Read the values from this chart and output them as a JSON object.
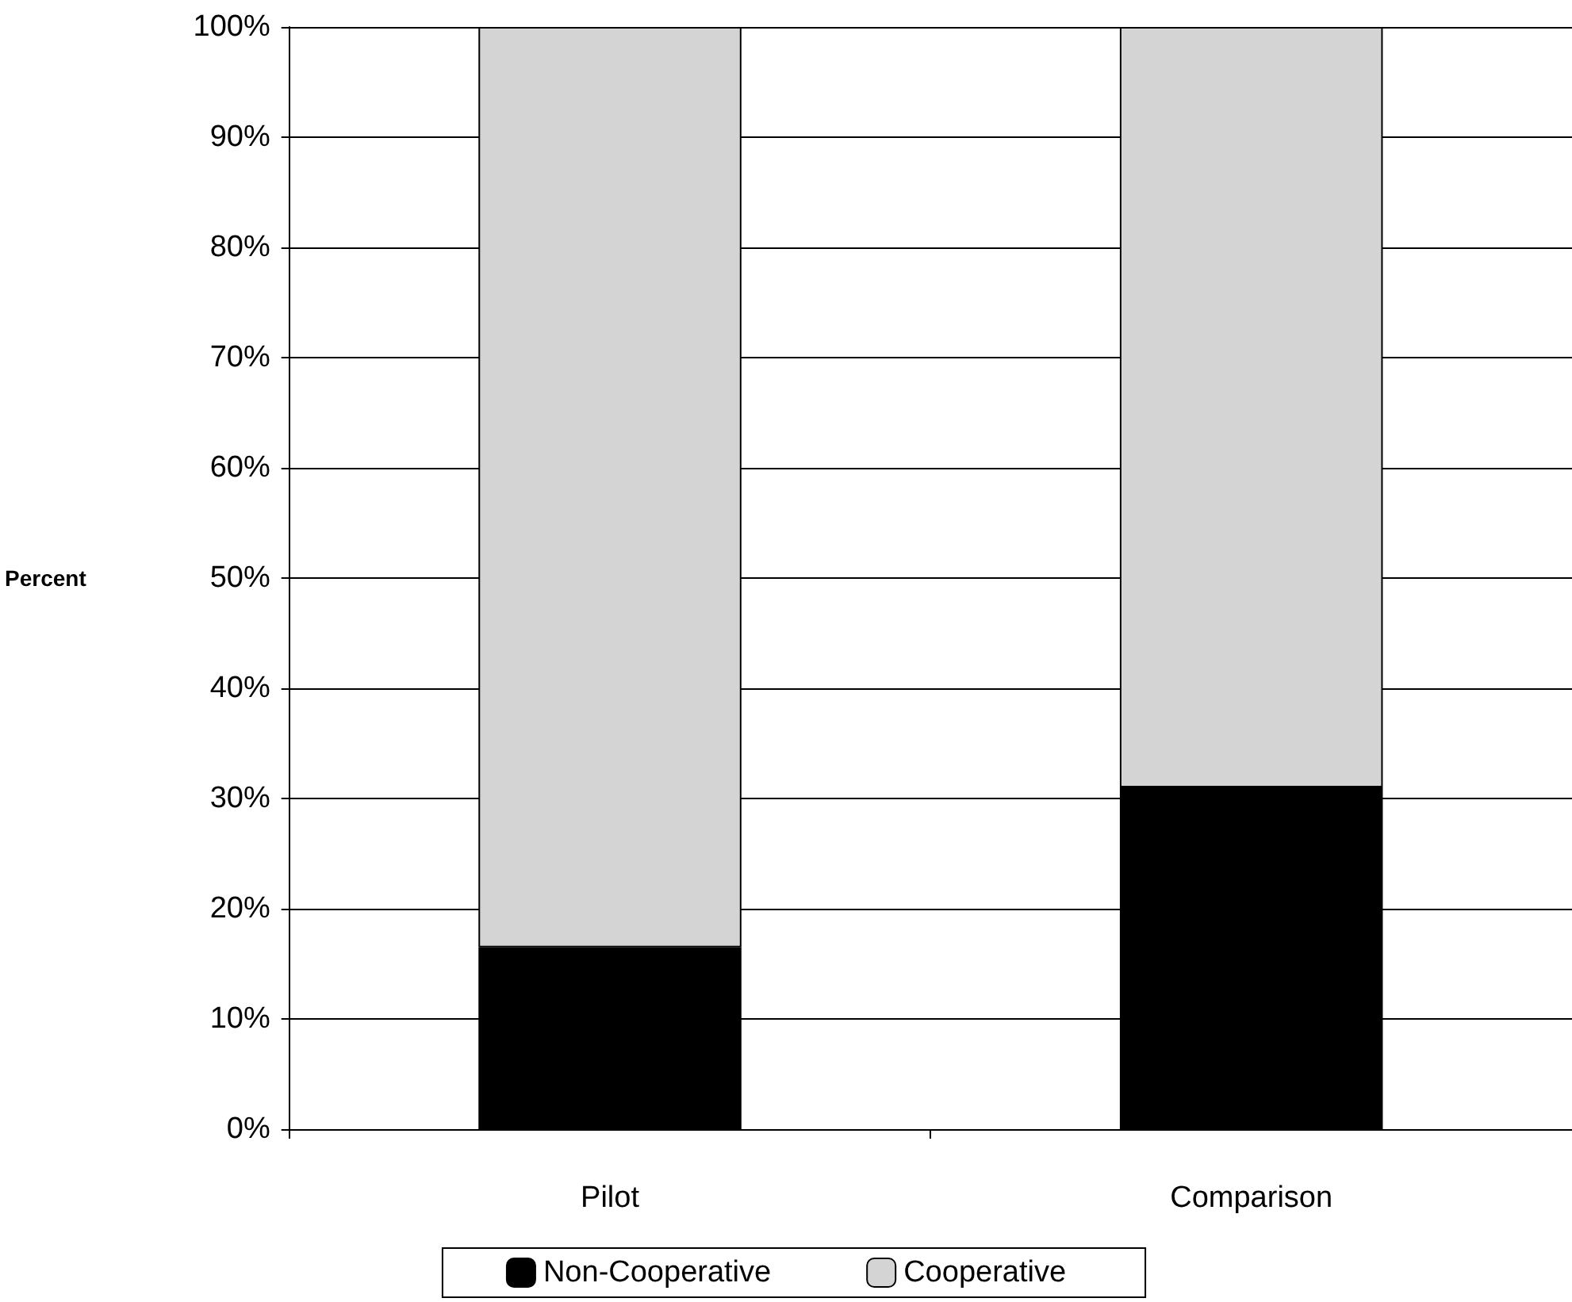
{
  "chart_data": {
    "type": "bar",
    "stacked": true,
    "ylabel": "Percent",
    "categories": [
      "Pilot",
      "Comparison"
    ],
    "series": [
      {
        "name": "Non-Cooperative",
        "color": "#000000",
        "values": [
          16.5,
          31
        ]
      },
      {
        "name": "Cooperative",
        "color": "#d4d4d4",
        "values": [
          83.5,
          69
        ]
      }
    ],
    "ylim": [
      0,
      100
    ],
    "yticks": [
      {
        "value": 0,
        "label": "0%"
      },
      {
        "value": 10,
        "label": "10%"
      },
      {
        "value": 20,
        "label": "20%"
      },
      {
        "value": 30,
        "label": "30%"
      },
      {
        "value": 40,
        "label": "40%"
      },
      {
        "value": 50,
        "label": "50%"
      },
      {
        "value": 60,
        "label": "60%"
      },
      {
        "value": 70,
        "label": "70%"
      },
      {
        "value": 80,
        "label": "80%"
      },
      {
        "value": 90,
        "label": "90%"
      },
      {
        "value": 100,
        "label": "100%"
      }
    ],
    "grid": "y",
    "legend": "bottom"
  }
}
